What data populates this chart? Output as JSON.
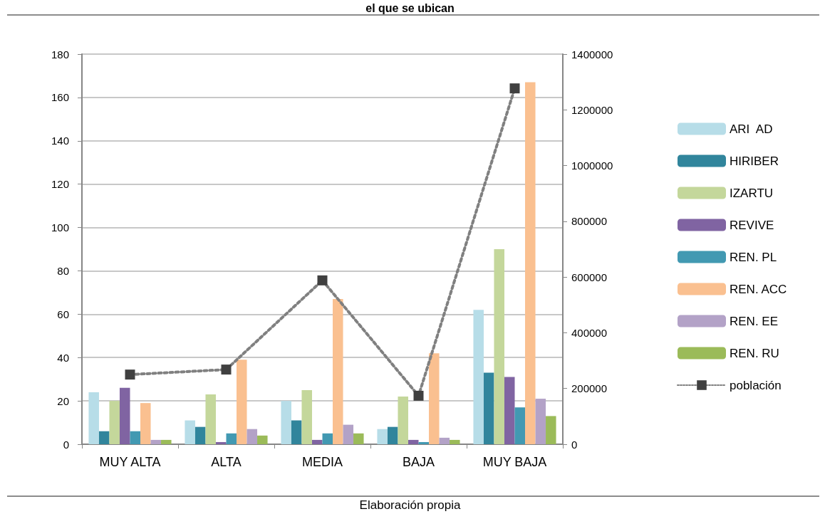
{
  "chart_data": {
    "type": "bar",
    "title": "el que se ubican",
    "categories": [
      "MUY ALTA",
      "ALTA",
      "MEDIA",
      "BAJA",
      "MUY BAJA"
    ],
    "series": [
      {
        "name": "ARI  AD",
        "color": "#b7dde8",
        "values": [
          24,
          11,
          20,
          7,
          62
        ]
      },
      {
        "name": "HIRIBER",
        "color": "#31859c",
        "values": [
          6,
          8,
          11,
          8,
          33
        ]
      },
      {
        "name": "IZARTU",
        "color": "#c4d79b",
        "values": [
          20,
          23,
          25,
          22,
          90
        ]
      },
      {
        "name": "REVIVE",
        "color": "#8064a2",
        "values": [
          26,
          1,
          2,
          2,
          31
        ]
      },
      {
        "name": "REN. PL",
        "color": "#4299b2",
        "values": [
          6,
          5,
          5,
          1,
          17
        ]
      },
      {
        "name": "REN. ACC",
        "color": "#fac090",
        "values": [
          19,
          39,
          67,
          42,
          167
        ]
      },
      {
        "name": "REN. EE",
        "color": "#b3a2c7",
        "values": [
          2,
          7,
          9,
          3,
          21
        ]
      },
      {
        "name": "REN. RU",
        "color": "#9bbb59",
        "values": [
          2,
          4,
          5,
          2,
          13
        ]
      },
      {
        "name": "población",
        "type": "line",
        "axis": "y2",
        "color": "#404040",
        "marker": "square",
        "line_style": "dotted",
        "values": [
          250000,
          268000,
          588000,
          174000,
          1277000
        ]
      }
    ],
    "ylim": [
      0,
      180
    ],
    "yticks": [
      0,
      20,
      40,
      60,
      80,
      100,
      120,
      140,
      160,
      180
    ],
    "y2lim": [
      0,
      1400000
    ],
    "y2ticks": [
      0,
      200000,
      400000,
      600000,
      800000,
      1000000,
      1200000,
      1400000
    ],
    "grid": "y",
    "legend": "right",
    "annotations": [
      "Elaboración propia"
    ]
  }
}
